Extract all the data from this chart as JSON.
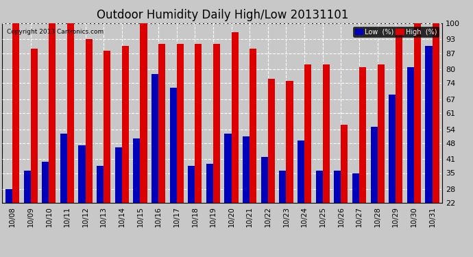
{
  "title": "Outdoor Humidity Daily High/Low 20131101",
  "copyright": "Copyright 2013 Cartronics.com",
  "dates": [
    "10/08",
    "10/09",
    "10/10",
    "10/11",
    "10/12",
    "10/13",
    "10/14",
    "10/15",
    "10/16",
    "10/17",
    "10/18",
    "10/19",
    "10/20",
    "10/21",
    "10/22",
    "10/23",
    "10/24",
    "10/25",
    "10/26",
    "10/27",
    "10/28",
    "10/29",
    "10/30",
    "10/31"
  ],
  "high": [
    100,
    89,
    100,
    100,
    93,
    88,
    90,
    100,
    91,
    91,
    91,
    91,
    96,
    89,
    76,
    75,
    82,
    82,
    56,
    81,
    82,
    95,
    100,
    100
  ],
  "low": [
    28,
    36,
    40,
    52,
    47,
    38,
    46,
    50,
    78,
    72,
    38,
    39,
    52,
    51,
    42,
    36,
    49,
    36,
    36,
    35,
    55,
    69,
    81,
    90
  ],
  "ylim": [
    22,
    100
  ],
  "yticks": [
    22,
    28,
    35,
    41,
    48,
    54,
    61,
    67,
    74,
    80,
    87,
    93,
    100
  ],
  "bar_width": 0.38,
  "high_color": "#dd0000",
  "low_color": "#0000bb",
  "bg_color": "#c8c8c8",
  "plot_bg_color": "#c8c8c8",
  "grid_color": "white",
  "title_fontsize": 12,
  "legend_low_label": "Low  (%)",
  "legend_high_label": "High  (%)"
}
